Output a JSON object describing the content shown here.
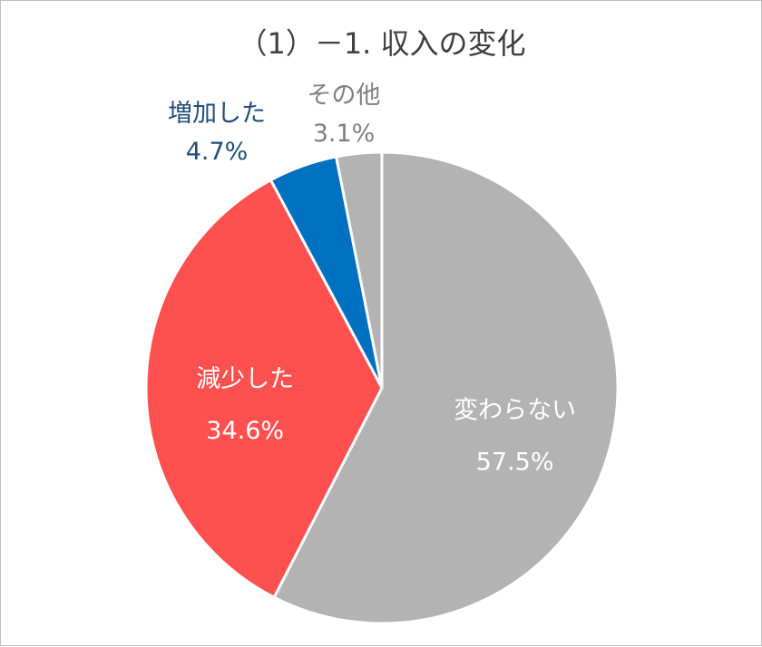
{
  "chart_data": {
    "type": "pie",
    "title": "（1）－1. 収入の変化",
    "start_angle_deg": 0,
    "direction": "clockwise",
    "slices": [
      {
        "label": "変わらない",
        "value": 57.5,
        "value_label": "57.5%",
        "color": "#b3b3b3",
        "label_color": "#ffffff",
        "label_position": "inside"
      },
      {
        "label": "減少した",
        "value": 34.6,
        "value_label": "34.6%",
        "color": "#ff5050",
        "label_color": "#ffffff",
        "label_position": "inside"
      },
      {
        "label": "増加した",
        "value": 4.7,
        "value_label": "4.7%",
        "color": "#0070c0",
        "label_color": "#1f4e79",
        "label_position": "outside"
      },
      {
        "label": "その他",
        "value": 3.1,
        "value_label": "3.1%",
        "color": "#b3b3b3",
        "label_color": "#808080",
        "label_position": "outside"
      }
    ],
    "slice_border_color": "#ffffff",
    "legend": "none"
  }
}
